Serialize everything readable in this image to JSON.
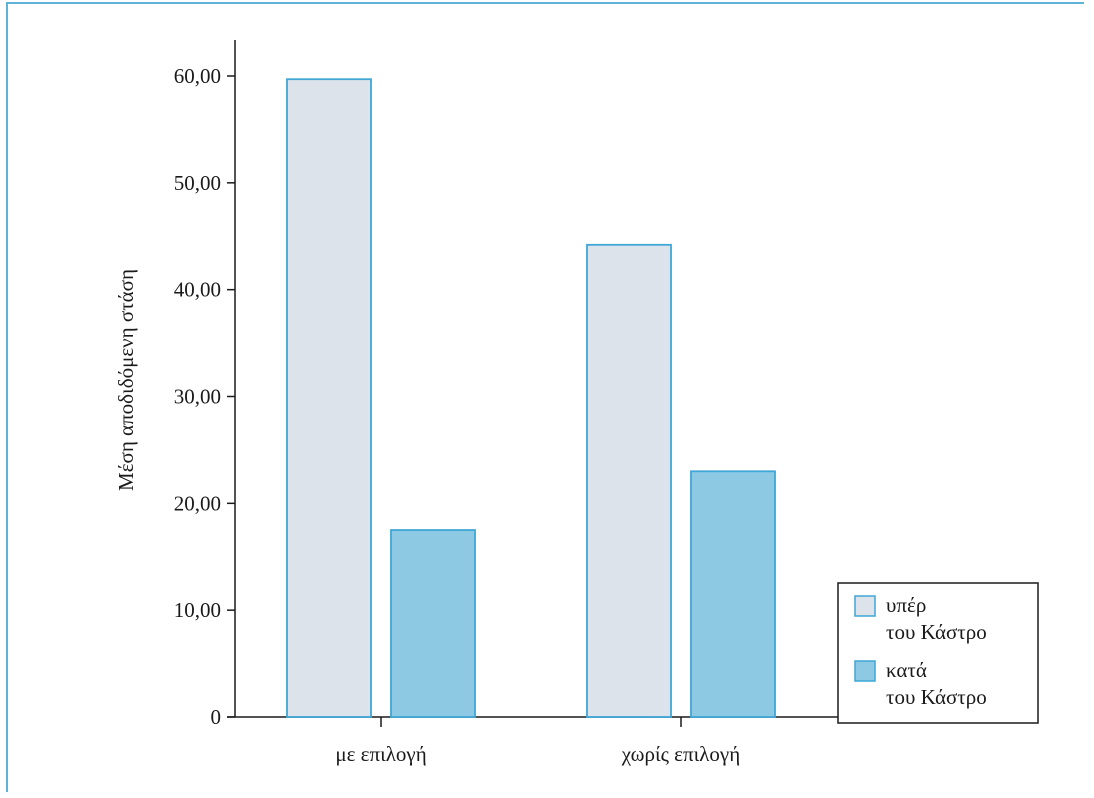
{
  "chart_data": {
    "type": "bar",
    "title": "",
    "xlabel": "",
    "ylabel": "Μέση αποδιδόμενη στάση",
    "categories": [
      "με επιλογή",
      "χωρίς επιλογή"
    ],
    "series": [
      {
        "name": [
          "υπέρ",
          "του Κάστρο"
        ],
        "values": [
          59.7,
          44.2
        ],
        "color": "#dde3ea"
      },
      {
        "name": [
          "κατά",
          "του Κάστρο"
        ],
        "values": [
          17.5,
          23.0
        ],
        "color": "#8ec9e4"
      }
    ],
    "yticks": [
      "0",
      "10,00",
      "20,00",
      "30,00",
      "40,00",
      "50,00",
      "60,00"
    ],
    "ytick_values": [
      0,
      10,
      20,
      30,
      40,
      50,
      60
    ],
    "ylim": [
      0,
      60
    ],
    "grid": false,
    "legend_position": "bottom-right",
    "outline_color": "#3fa6d6",
    "frame_color": "#5fb3d9"
  }
}
